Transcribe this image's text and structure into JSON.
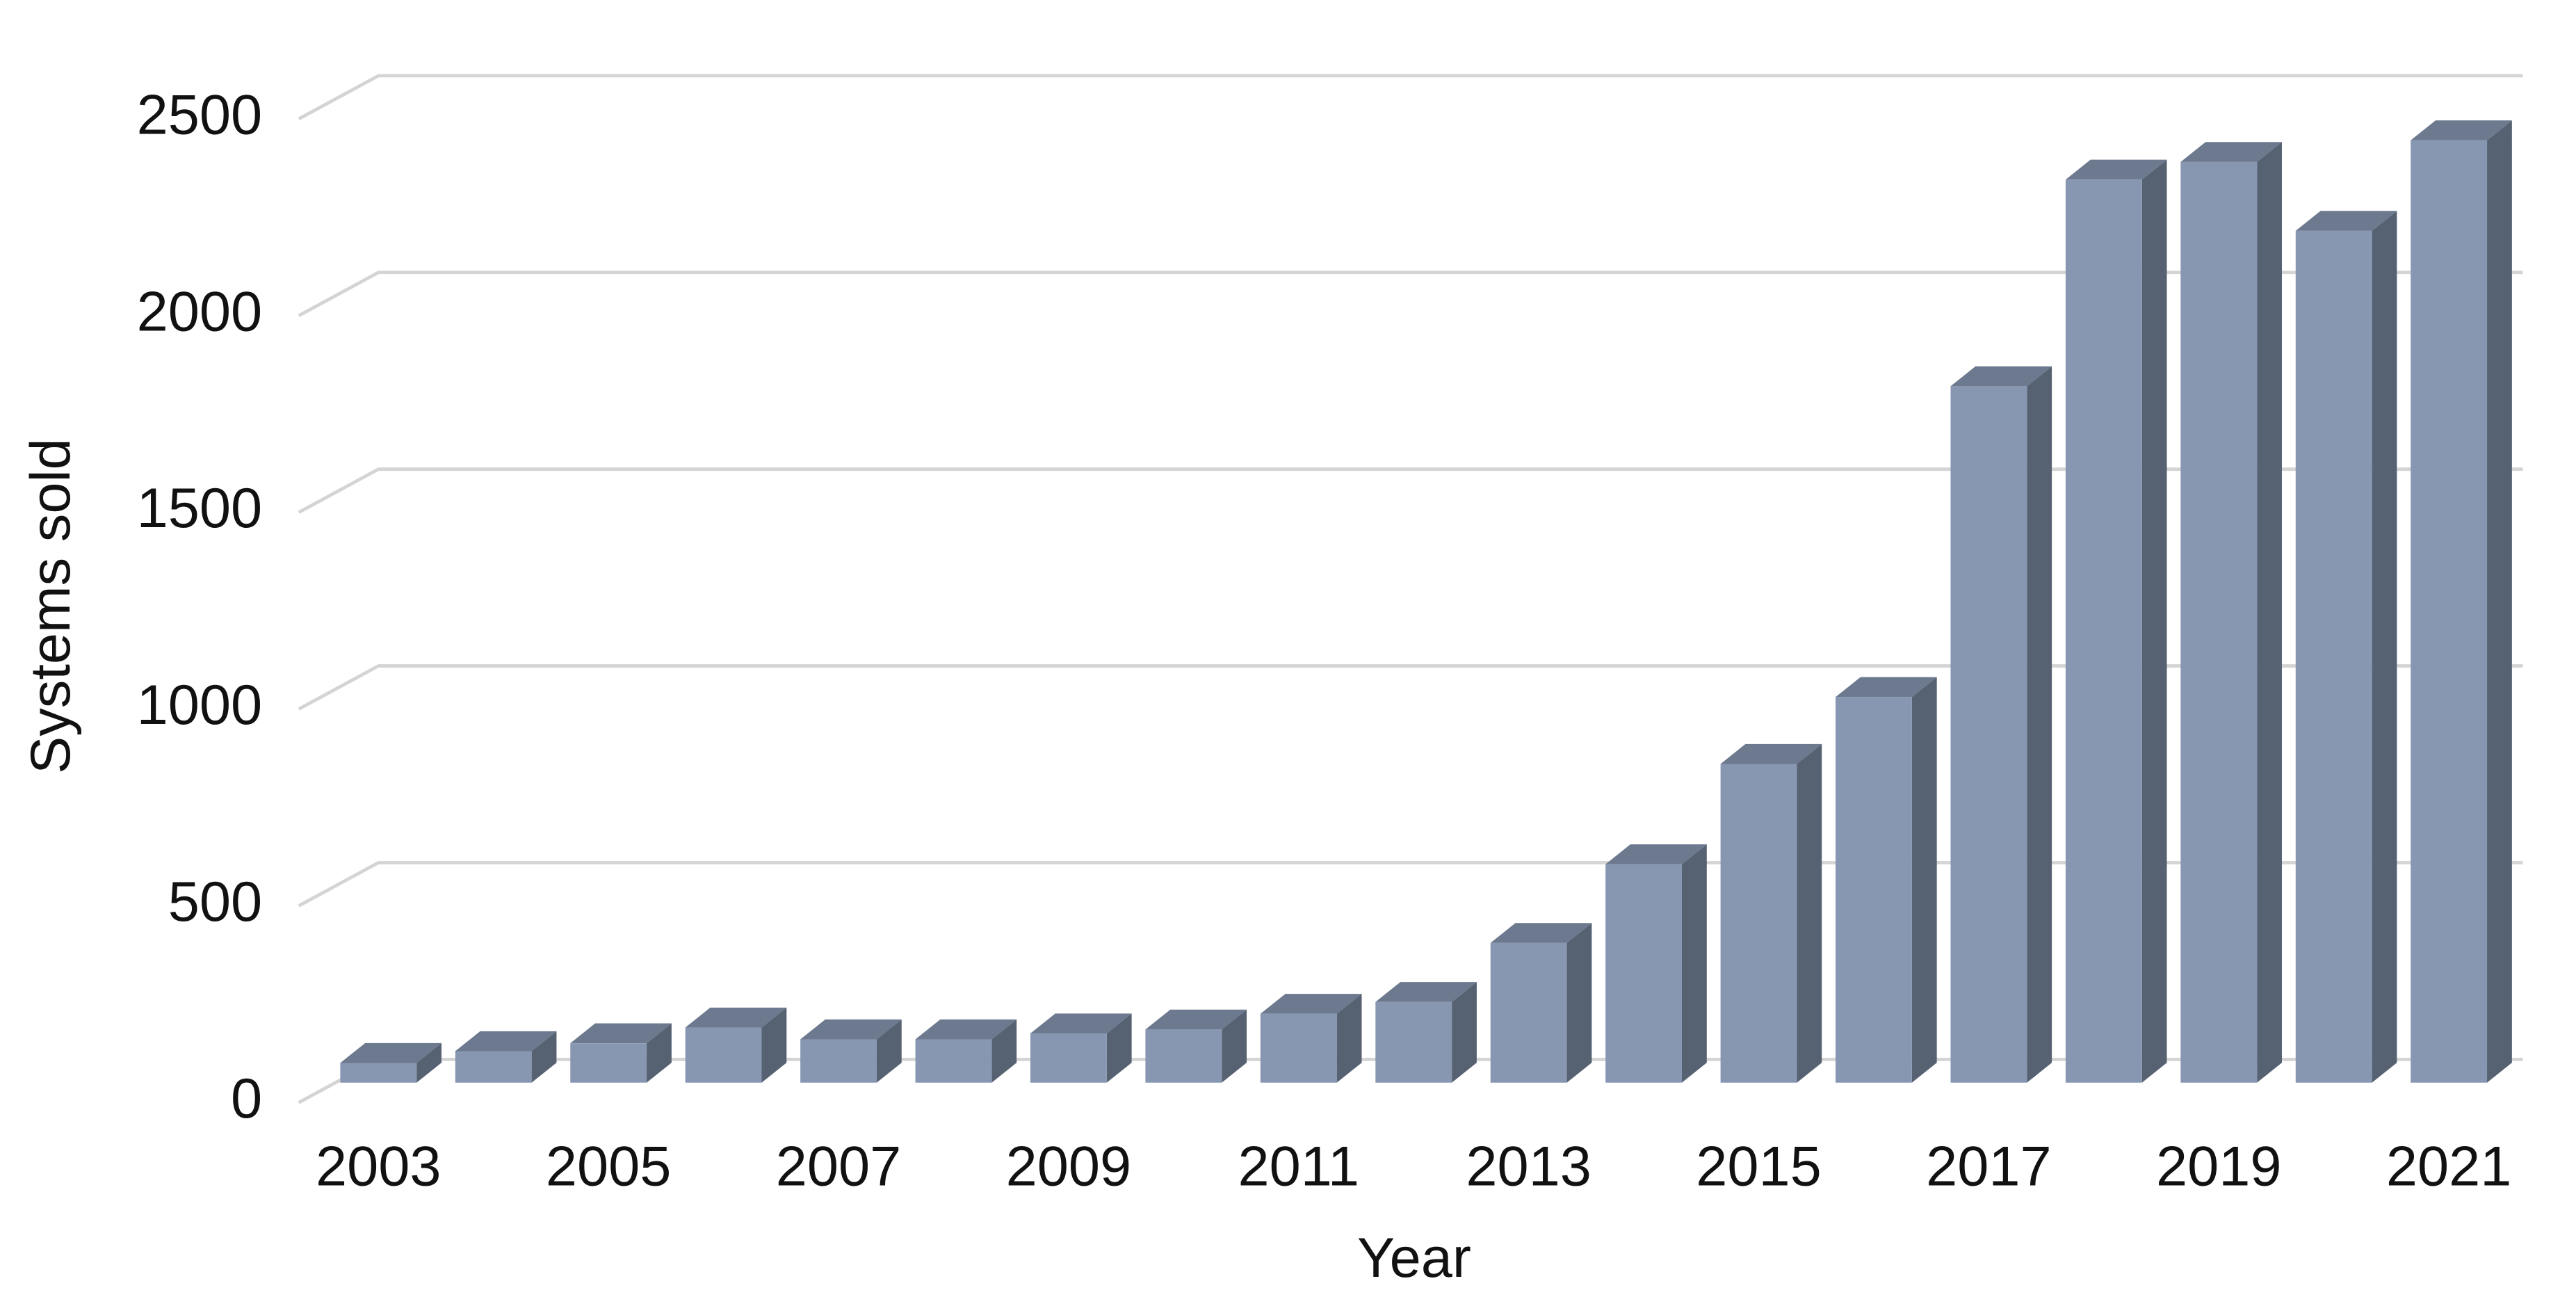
{
  "chart_data": {
    "type": "bar3d",
    "categories": [
      "2003",
      null,
      "2005",
      null,
      "2007",
      null,
      "2009",
      null,
      "2011",
      null,
      "2013",
      null,
      "2015",
      null,
      "2017",
      null,
      "2019",
      null,
      "2021"
    ],
    "values": [
      50,
      80,
      100,
      140,
      110,
      110,
      125,
      135,
      175,
      205,
      355,
      555,
      810,
      980,
      1770,
      2295,
      2340,
      2165,
      2395
    ],
    "color": "#8797b2",
    "x_label": "Year",
    "y_label": "Systems sold",
    "ylim": [
      0,
      2500
    ],
    "yticks": [
      0,
      500,
      1000,
      1500,
      2000,
      2500
    ],
    "grid": true
  }
}
